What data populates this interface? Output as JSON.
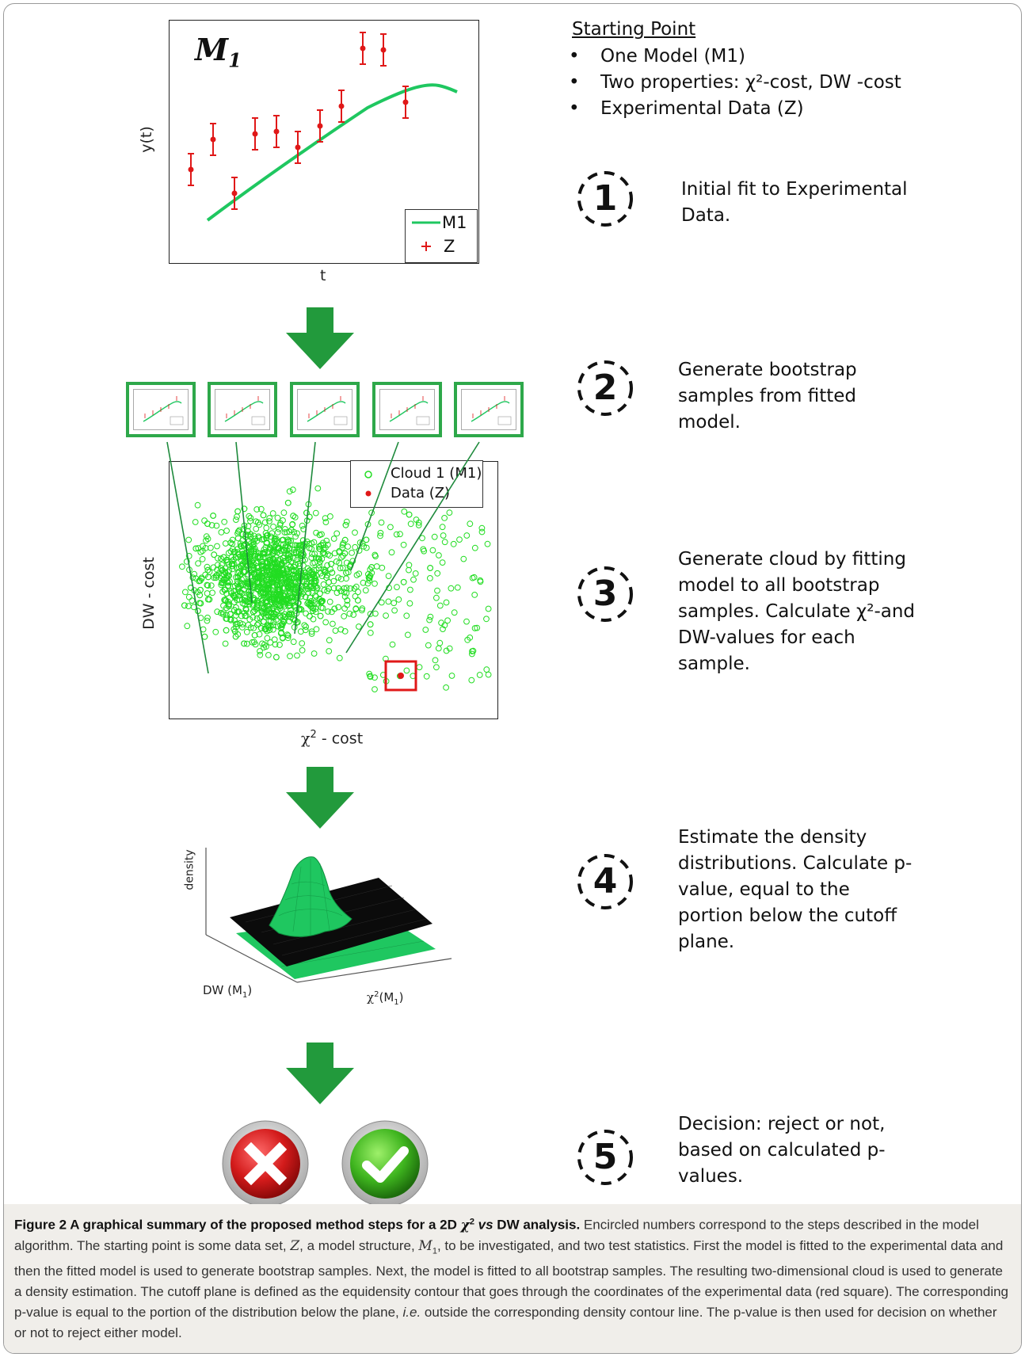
{
  "panel1": {
    "model_label": "M",
    "model_sub": "1",
    "ylabel": "y(t)",
    "xlabel": "t",
    "legend": [
      "M1",
      "Z"
    ]
  },
  "panel3": {
    "ylabel": "DW - cost",
    "xlabel_main": "χ",
    "xlabel_sup": "2",
    "xlabel_rest": " - cost",
    "legend": [
      "Cloud 1 (M1)",
      "Data (Z)"
    ]
  },
  "panel4": {
    "zlabel": "density",
    "xlabel": "DW (M",
    "xlabel_sub": "1",
    "xlabel_end": ")",
    "ylabel_main": "χ",
    "ylabel_sup": "2",
    "ylabel_rest": "(M",
    "ylabel_sub": "1",
    "ylabel_end": ")"
  },
  "starting_point": {
    "title": "Starting Point",
    "items": [
      "One Model (M1)",
      "Two properties:   χ²-cost, DW -cost",
      "Experimental Data (Z)"
    ]
  },
  "steps": [
    {
      "number": "1",
      "text": "Initial fit to Experimental Data."
    },
    {
      "number": "2",
      "text": "Generate bootstrap samples from fitted model."
    },
    {
      "number": "3",
      "text": "Generate cloud by fitting model to all bootstrap samples. Calculate χ²-and DW-values for each sample."
    },
    {
      "number": "4",
      "text": "Estimate the density distributions. Calculate p-value, equal to the portion below the cutoff plane."
    },
    {
      "number": "5",
      "text": "Decision: reject or not, based on calculated p-values."
    }
  ],
  "caption": {
    "label": "Figure 2",
    "title_a": " A graphical summary of the proposed method steps for a 2D ",
    "title_chi": "χ",
    "title_sup": "2",
    "title_vs": " vs",
    "title_b": " DW analysis.",
    "body_1": " Encircled numbers correspond to the steps described in the model algorithm. The starting point is some data set, ",
    "sym_z": "Z",
    "body_2": ", a model structure, ",
    "sym_m": "M",
    "sym_m_sub": "1",
    "body_3": ", to be investigated, and two test statistics. First the model is fitted to the experimental data and then the fitted model is used to generate bootstrap samples. Next, the model is fitted to all bootstrap samples. The resulting two-dimensional cloud is used to generate a density estimation. The cutoff plane is defined as the equidensity contour that goes through the coordinates of the experimental data (red square). The corresponding p-value is equal to the portion of the distribution below the plane, ",
    "body_ie": "i.e.",
    "body_4": " outside the corresponding density contour line. The p-value is then used for decision on whether or not to reject either model."
  },
  "colors": {
    "green": "#1fc760",
    "arrow_green": "#229a3c",
    "red": "#e01818",
    "cloud": "#22dd22"
  }
}
